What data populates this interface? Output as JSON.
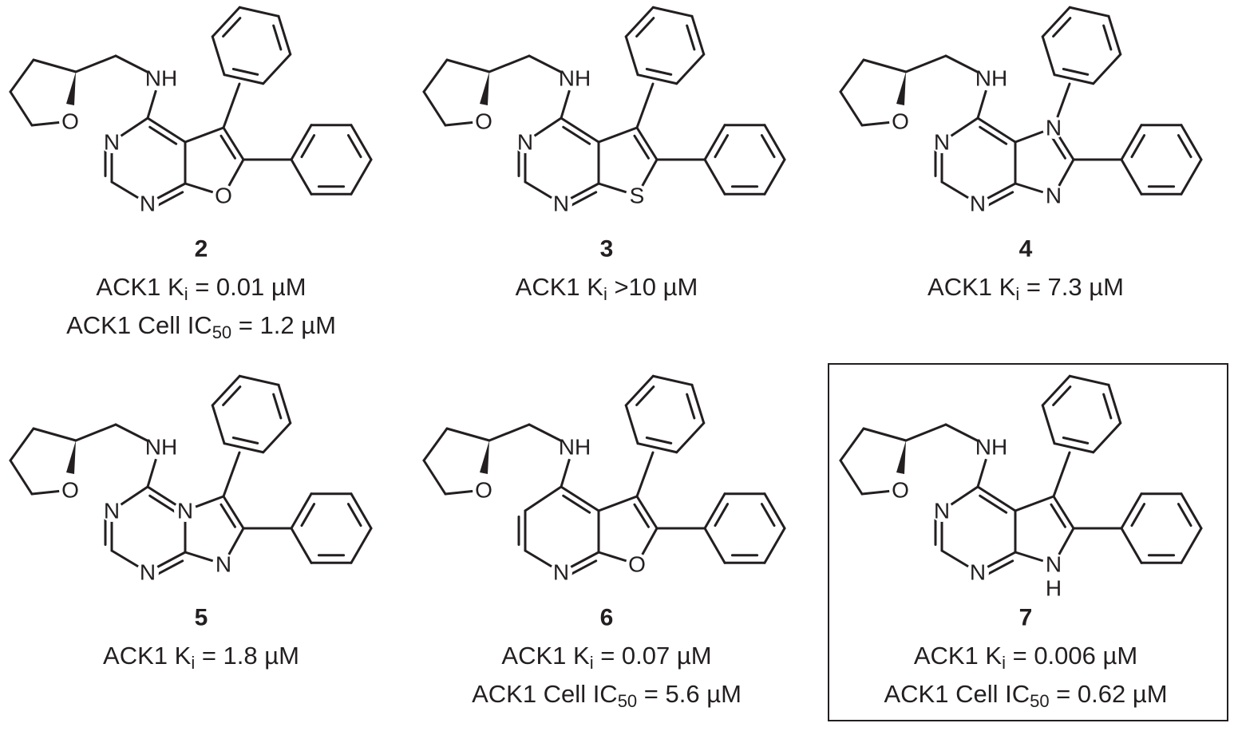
{
  "compounds": [
    {
      "number": "2",
      "atoms": {
        "nh": "NH",
        "n3": "N",
        "n1": "N",
        "x7": "O",
        "o": "O"
      },
      "lines": [
        [
          "ACK1 K",
          "i",
          " = 0.01 µM"
        ],
        [
          "ACK1 Cell IC",
          "50",
          " = 1.2 µM"
        ]
      ]
    },
    {
      "number": "3",
      "atoms": {
        "nh": "NH",
        "n3": "N",
        "n1": "N",
        "x7": "S",
        "o": "O"
      },
      "lines": [
        [
          "ACK1 K",
          "i",
          " >10 µM"
        ]
      ]
    },
    {
      "number": "4",
      "atoms": {
        "nh": "NH",
        "n3": "N",
        "n1": "N",
        "x5": "N",
        "x7": "N",
        "o": "O"
      },
      "lines": [
        [
          "ACK1 K",
          "i",
          " = 7.3 µM"
        ]
      ]
    },
    {
      "number": "5",
      "atoms": {
        "nh": "NH",
        "n3": "N",
        "n1": "N",
        "n4a": "N",
        "x7": "N",
        "o": "O"
      },
      "lines": [
        [
          "ACK1 K",
          "i",
          " = 1.8 µM"
        ]
      ]
    },
    {
      "number": "6",
      "atoms": {
        "nh": "NH",
        "n1": "N",
        "x7": "O",
        "o": "O"
      },
      "lines": [
        [
          "ACK1 K",
          "i",
          " = 0.07 µM"
        ],
        [
          "ACK1 Cell IC",
          "50",
          " = 5.6 µM"
        ]
      ]
    },
    {
      "number": "7",
      "atoms": {
        "nh": "NH",
        "n3": "N",
        "n1": "N",
        "x7": "N",
        "xh": "H",
        "o": "O"
      },
      "lines": [
        [
          "ACK1 K",
          "i",
          " = 0.006 µM"
        ],
        [
          "ACK1 Cell IC",
          "50",
          " = 0.62 µM"
        ]
      ]
    }
  ]
}
